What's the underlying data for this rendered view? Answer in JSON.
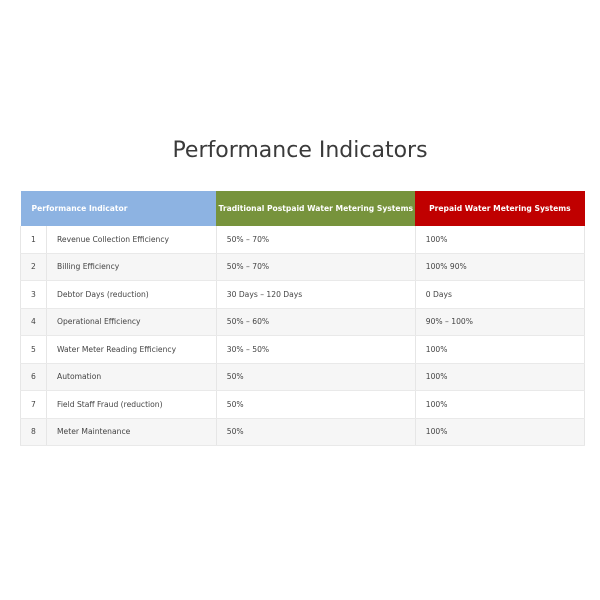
{
  "title": "Performance Indicators",
  "colors": {
    "header_indicator": "#8db3e2",
    "header_postpaid": "#77933c",
    "header_prepaid": "#c00000"
  },
  "table": {
    "headers": [
      "Performance Indicator",
      "Traditional Postpaid Water Metering Systems",
      "Prepaid Water Metering Systems"
    ],
    "rows": [
      {
        "num": "1",
        "indicator": "Revenue Collection Efficiency",
        "postpaid": "50% – 70%",
        "prepaid": "100%"
      },
      {
        "num": "2",
        "indicator": "Billing Efficiency",
        "postpaid": "50% – 70%",
        "prepaid": "100%  90%"
      },
      {
        "num": "3",
        "indicator": "Debtor Days (reduction)",
        "postpaid": "30 Days – 120 Days",
        "prepaid": "0 Days"
      },
      {
        "num": "4",
        "indicator": "Operational Efficiency",
        "postpaid": "50% – 60%",
        "prepaid": "90% – 100%"
      },
      {
        "num": "5",
        "indicator": "Water Meter Reading Efficiency",
        "postpaid": "30% – 50%",
        "prepaid": "100%"
      },
      {
        "num": "6",
        "indicator": "Automation",
        "postpaid": "50%",
        "prepaid": "100%"
      },
      {
        "num": "7",
        "indicator": "Field Staff Fraud (reduction)",
        "postpaid": "50%",
        "prepaid": "100%"
      },
      {
        "num": "8",
        "indicator": "Meter Maintenance",
        "postpaid": "50%",
        "prepaid": "100%"
      }
    ]
  }
}
